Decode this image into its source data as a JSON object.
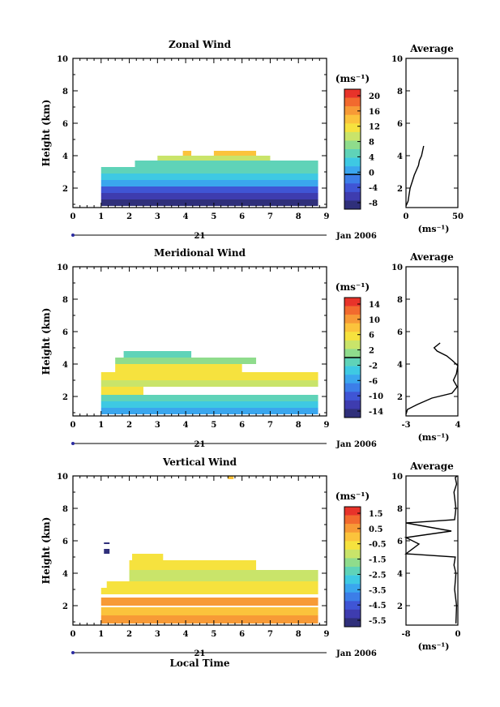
{
  "panels": [
    {
      "title": "Zonal Wind",
      "ylabel": "Height (km)",
      "yticks": [
        "10",
        "8",
        "6",
        "4",
        "2"
      ],
      "xticks": [
        "0",
        "1",
        "2",
        "3",
        "4",
        "5",
        "6",
        "7",
        "8",
        "9"
      ],
      "date_center": "21",
      "date_right": "Jan 2006",
      "colorbar": {
        "unit": "(ms⁻¹)",
        "ticks": [
          "20",
          "16",
          "12",
          "8",
          "4",
          "0",
          "-4",
          "-8"
        ],
        "colors": [
          "#e8332a",
          "#f26a2e",
          "#f79a36",
          "#fbc33c",
          "#f6e23e",
          "#c9e46a",
          "#8fdc8c",
          "#5fd3b8",
          "#3ec9e3",
          "#3aa6ee",
          "#3c7ee8",
          "#3f55d5",
          "#3e3caf",
          "#2f2f7a"
        ],
        "zero_line_fraction": 0.71
      },
      "avg": {
        "title": "Average",
        "xticks": [
          "0",
          "50"
        ],
        "unit": "(ms⁻¹)",
        "yticks": [
          "10",
          "8",
          "6",
          "4",
          "2"
        ]
      }
    },
    {
      "title": "Meridional Wind",
      "ylabel": "Height (km)",
      "yticks": [
        "10",
        "8",
        "6",
        "4",
        "2"
      ],
      "xticks": [
        "0",
        "1",
        "2",
        "3",
        "4",
        "5",
        "6",
        "7",
        "8",
        "9"
      ],
      "date_center": "21",
      "date_right": "Jan 2006",
      "colorbar": {
        "unit": "(ms⁻¹)",
        "ticks": [
          "14",
          "10",
          "6",
          "2",
          "-2",
          "-6",
          "-10",
          "-14"
        ],
        "colors": [
          "#e8332a",
          "#f26a2e",
          "#f79a36",
          "#fbc33c",
          "#f6e23e",
          "#c9e46a",
          "#8fdc8c",
          "#5fd3b8",
          "#3ec9e3",
          "#3aa6ee",
          "#3c7ee8",
          "#3f55d5",
          "#3e3caf",
          "#2f2f7a"
        ],
        "zero_line_fraction": 0.5
      },
      "avg": {
        "title": "Average",
        "xticks": [
          "-3",
          "4"
        ],
        "unit": "(ms⁻¹)",
        "yticks": [
          "10",
          "8",
          "6",
          "4",
          "2"
        ]
      }
    },
    {
      "title": "Vertical Wind",
      "ylabel": "Height (km)",
      "yticks": [
        "10",
        "8",
        "6",
        "4",
        "2"
      ],
      "xticks": [
        "0",
        "1",
        "2",
        "3",
        "4",
        "5",
        "6",
        "7",
        "8",
        "9"
      ],
      "date_center": "21",
      "date_right": "Jan 2006",
      "xlabel": "Local Time",
      "colorbar": {
        "unit": "(ms⁻¹)",
        "ticks": [
          "1.5",
          "0.5",
          "-0.5",
          "-1.5",
          "-2.5",
          "-3.5",
          "-4.5",
          "-5.5"
        ],
        "colors": [
          "#e8332a",
          "#f26a2e",
          "#f79a36",
          "#fbc33c",
          "#f6e23e",
          "#c9e46a",
          "#8fdc8c",
          "#5fd3b8",
          "#3ec9e3",
          "#3aa6ee",
          "#3c7ee8",
          "#3f55d5",
          "#3e3caf",
          "#2f2f7a"
        ],
        "zero_line_fraction": -1
      },
      "avg": {
        "title": "Average",
        "xticks": [
          "-8",
          "0"
        ],
        "unit": "(ms⁻¹)",
        "yticks": [
          "10",
          "8",
          "6",
          "4",
          "2"
        ]
      }
    }
  ],
  "chart_data": [
    {
      "type": "heatmap",
      "title": "Zonal Wind",
      "ylabel": "Height (km)",
      "xlim": [
        0,
        9
      ],
      "ylim": [
        0.8,
        10
      ],
      "colorbar_range": [
        -8,
        22
      ],
      "cells": [
        {
          "x": [
            1.0,
            8.7
          ],
          "y": [
            0.9,
            1.3
          ],
          "v": -6
        },
        {
          "x": [
            1.0,
            8.7
          ],
          "y": [
            1.3,
            1.7
          ],
          "v": -4
        },
        {
          "x": [
            1.0,
            8.7
          ],
          "y": [
            1.7,
            2.1
          ],
          "v": -2
        },
        {
          "x": [
            1.0,
            8.7
          ],
          "y": [
            2.1,
            2.5
          ],
          "v": 1
        },
        {
          "x": [
            1.0,
            8.7
          ],
          "y": [
            2.5,
            2.9
          ],
          "v": 3
        },
        {
          "x": [
            1.0,
            8.7
          ],
          "y": [
            2.9,
            3.3
          ],
          "v": 6
        },
        {
          "x": [
            2.2,
            8.7
          ],
          "y": [
            3.3,
            3.7
          ],
          "v": 7
        },
        {
          "x": [
            3.0,
            7.0
          ],
          "y": [
            3.7,
            4.0
          ],
          "v": 11
        },
        {
          "x": [
            5.0,
            6.5
          ],
          "y": [
            4.0,
            4.3
          ],
          "v": 14
        },
        {
          "x": [
            3.9,
            4.2
          ],
          "y": [
            4.0,
            4.3
          ],
          "v": 14
        }
      ],
      "avg_profile": {
        "x": [
          0,
          2,
          3,
          4,
          6,
          8,
          10,
          12,
          13,
          15,
          16,
          17
        ],
        "y": [
          0.9,
          1.2,
          1.6,
          2.0,
          2.4,
          2.8,
          3.1,
          3.4,
          3.7,
          4.0,
          4.3,
          4.6
        ]
      }
    },
    {
      "type": "heatmap",
      "title": "Meridional Wind",
      "ylabel": "Height (km)",
      "xlim": [
        0,
        9
      ],
      "ylim": [
        0.8,
        10
      ],
      "colorbar_range": [
        -16,
        16
      ],
      "cells": [
        {
          "x": [
            1.0,
            8.7
          ],
          "y": [
            0.9,
            1.3
          ],
          "v": -6
        },
        {
          "x": [
            1.0,
            8.7
          ],
          "y": [
            1.3,
            1.7
          ],
          "v": -3
        },
        {
          "x": [
            1.0,
            8.7
          ],
          "y": [
            1.7,
            2.1
          ],
          "v": -1
        },
        {
          "x": [
            1.0,
            2.5
          ],
          "y": [
            2.1,
            2.6
          ],
          "v": 5
        },
        {
          "x": [
            1.0,
            8.7
          ],
          "y": [
            2.6,
            3.0
          ],
          "v": 3
        },
        {
          "x": [
            1.0,
            8.7
          ],
          "y": [
            3.0,
            3.5
          ],
          "v": 5
        },
        {
          "x": [
            1.5,
            6.0
          ],
          "y": [
            3.5,
            4.0
          ],
          "v": 6
        },
        {
          "x": [
            1.5,
            6.5
          ],
          "y": [
            4.0,
            4.4
          ],
          "v": 1
        },
        {
          "x": [
            1.8,
            4.2
          ],
          "y": [
            4.4,
            4.8
          ],
          "v": -2
        }
      ],
      "avg_profile": {
        "x": [
          -3,
          -2.8,
          -1.5,
          0.5,
          3.2,
          3.9,
          3.4,
          3.8,
          4.0,
          3.3,
          2.5,
          1.2,
          0.8,
          1.6
        ],
        "y": [
          0.9,
          1.2,
          1.5,
          1.9,
          2.2,
          2.6,
          3.0,
          3.4,
          3.9,
          4.2,
          4.5,
          4.8,
          5.0,
          5.3
        ]
      }
    },
    {
      "type": "heatmap",
      "title": "Vertical Wind",
      "ylabel": "Height (km)",
      "xlabel": "Local Time",
      "xlim": [
        0,
        9
      ],
      "ylim": [
        0.8,
        10
      ],
      "colorbar_range": [
        -6,
        2
      ],
      "cells": [
        {
          "x": [
            1.0,
            8.7
          ],
          "y": [
            0.9,
            1.4
          ],
          "v": 0.6
        },
        {
          "x": [
            1.0,
            8.7
          ],
          "y": [
            1.4,
            1.9
          ],
          "v": 0
        },
        {
          "x": [
            1.0,
            8.7
          ],
          "y": [
            2.0,
            2.5
          ],
          "v": 0.3
        },
        {
          "x": [
            1.0,
            8.7
          ],
          "y": [
            2.7,
            3.1
          ],
          "v": -0.3
        },
        {
          "x": [
            1.2,
            8.7
          ],
          "y": [
            3.1,
            3.5
          ],
          "v": -0.5
        },
        {
          "x": [
            2.0,
            8.7
          ],
          "y": [
            3.5,
            4.2
          ],
          "v": -1.2
        },
        {
          "x": [
            2.0,
            6.5
          ],
          "y": [
            4.2,
            4.8
          ],
          "v": -0.6
        },
        {
          "x": [
            2.1,
            3.2
          ],
          "y": [
            4.8,
            5.2
          ],
          "v": -0.4
        },
        {
          "x": [
            1.1,
            1.3
          ],
          "y": [
            5.2,
            5.5
          ],
          "v": -5.5
        },
        {
          "x": [
            1.1,
            1.3
          ],
          "y": [
            5.8,
            5.9
          ],
          "v": -5.5
        },
        {
          "x": [
            5.5,
            5.7
          ],
          "y": [
            9.8,
            10.0
          ],
          "v": -0.2
        }
      ],
      "avg_profile": {
        "x": [
          -0.3,
          -0.2,
          -0.5,
          -0.3,
          -0.6,
          -0.4,
          -8,
          -6,
          -8,
          -1,
          -8,
          -0.5,
          -0.3,
          -0.6,
          -0.2,
          -0.4,
          -0.1
        ],
        "y": [
          0.9,
          2.0,
          3.0,
          4.0,
          4.5,
          5.0,
          5.2,
          5.8,
          6.2,
          6.6,
          7.1,
          7.3,
          8.0,
          9.0,
          9.5,
          9.9,
          10.0
        ]
      }
    }
  ]
}
